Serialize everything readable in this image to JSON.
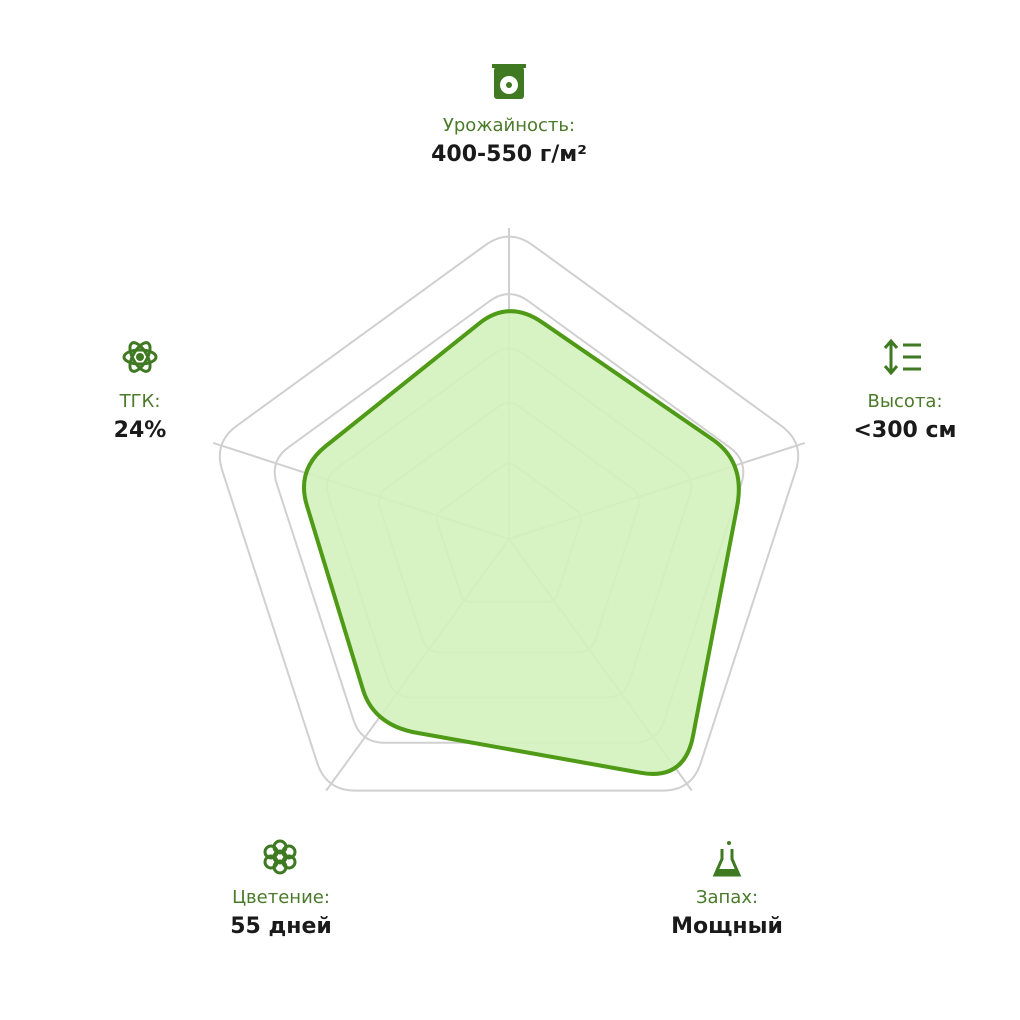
{
  "chart_data": {
    "type": "radar",
    "categories": [
      "Урожайность:",
      "Высота:",
      "Запах:",
      "Цветение:",
      "ТГК:"
    ],
    "descriptions": [
      "400-550 г/м²",
      "<300 см",
      "Мощный",
      "55 дней",
      "24%"
    ],
    "values": [
      77,
      80,
      96,
      74,
      72
    ],
    "rlim": [
      0,
      100
    ],
    "color": "#4f9a16",
    "fill": "#d3f2bc"
  }
}
